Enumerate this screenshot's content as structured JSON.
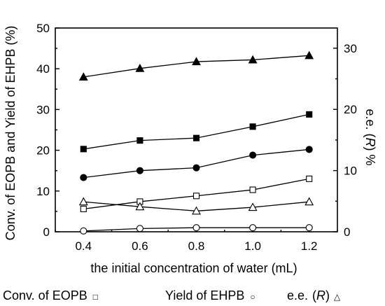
{
  "chart_data": {
    "type": "line",
    "xlabel": "the initial concentration of water (mL)",
    "ylabel_left": "Conv. of EOPB and Yield of EHPB (%)",
    "ylabel_right_main": "e.e. (",
    "ylabel_right_italic": "R",
    "ylabel_right_tail": ") %",
    "x": [
      0.4,
      0.6,
      0.8,
      1.0,
      1.2
    ],
    "x_tick_labels": [
      "0.4",
      "0.6",
      "0.8",
      "1.0",
      "1.2"
    ],
    "xlim": [
      0.3,
      1.3
    ],
    "ylim_left": [
      0,
      50
    ],
    "ylim_right": [
      0,
      33.3
    ],
    "y_left_ticks": [
      "0",
      "10",
      "20",
      "30",
      "40",
      "50"
    ],
    "y_right_ticks": [
      "0",
      "10",
      "20",
      "30"
    ],
    "series": [
      {
        "axis": "right",
        "marker": "triangle-filled",
        "values": [
          25.3,
          26.7,
          27.8,
          28.1,
          28.8
        ]
      },
      {
        "axis": "left",
        "marker": "square-filled",
        "values": [
          20.3,
          22.4,
          23.0,
          25.8,
          28.8
        ]
      },
      {
        "axis": "left",
        "marker": "circle-filled",
        "values": [
          13.3,
          15.0,
          15.7,
          18.8,
          20.2
        ]
      },
      {
        "axis": "left",
        "marker": "square-open",
        "values": [
          5.6,
          7.4,
          8.8,
          10.3,
          13.0
        ]
      },
      {
        "axis": "right",
        "marker": "triangle-open",
        "values": [
          4.9,
          4.1,
          3.4,
          4.0,
          4.9
        ]
      },
      {
        "axis": "left",
        "marker": "circle-open",
        "values": [
          0.2,
          0.8,
          1.0,
          1.0,
          1.0
        ]
      }
    ],
    "legend": [
      {
        "text": "Conv. of EOPB",
        "symbol": "□"
      },
      {
        "text": "Yield of EHPB",
        "symbol": "○"
      },
      {
        "text_before": "e.e.",
        "text_italic": "R",
        "symbol": "△"
      }
    ]
  }
}
